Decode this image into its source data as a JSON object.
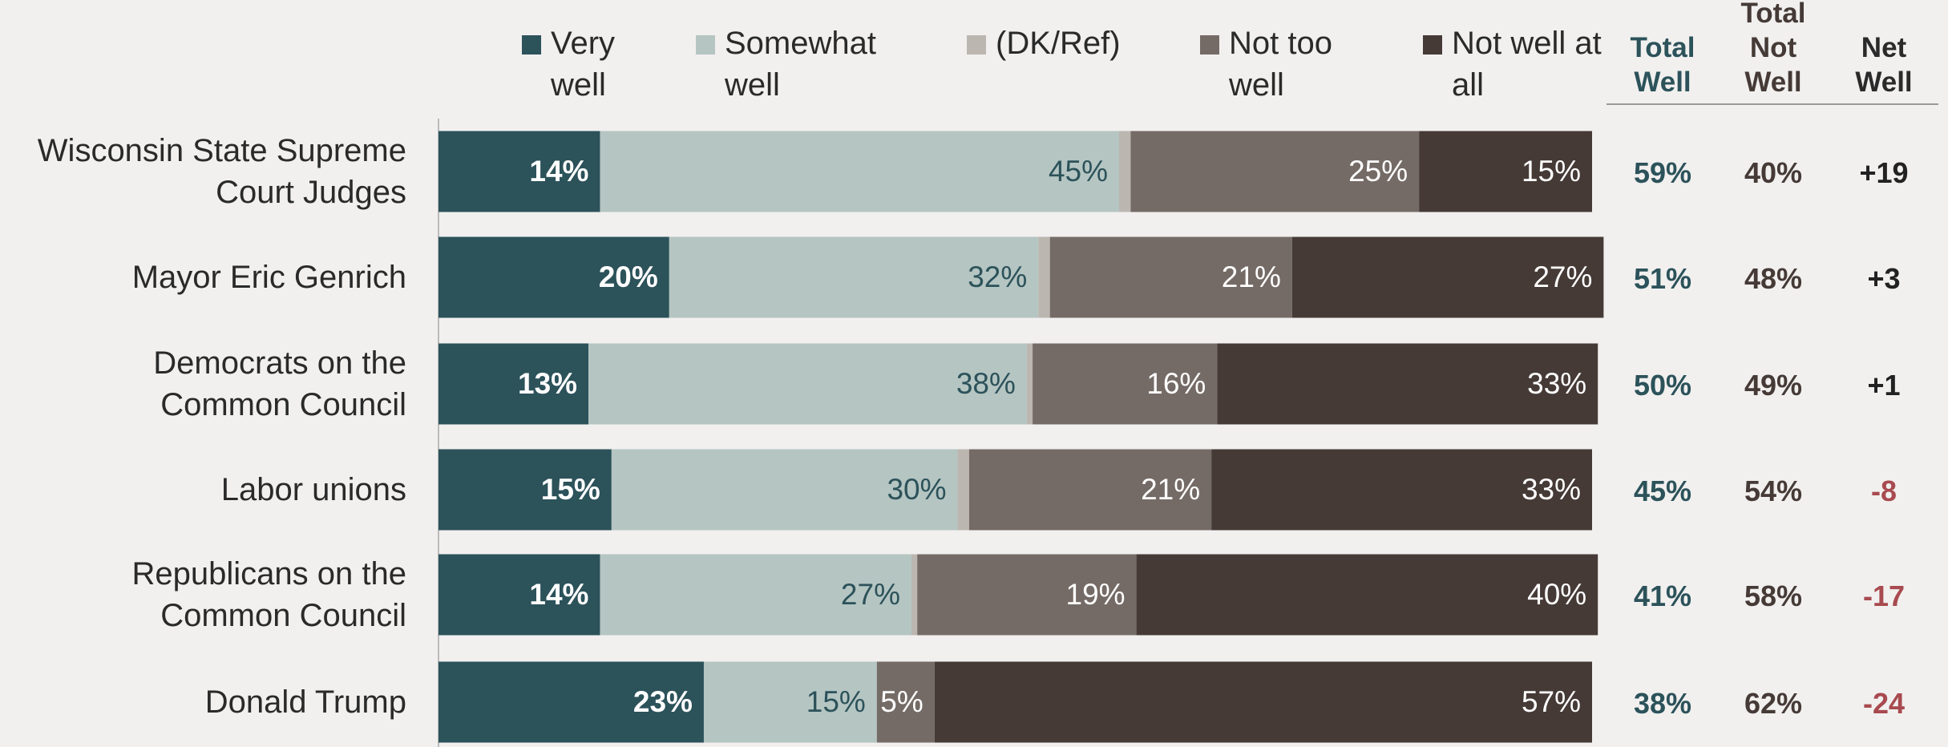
{
  "chart_data": {
    "type": "stacked_bar",
    "orientation": "horizontal",
    "categories": [
      "Wisconsin State Supreme Court Judges",
      "Mayor Eric Genrich",
      "Democrats on the Common Council",
      "Labor unions",
      "Republicans on the Common Council",
      "Donald Trump"
    ],
    "xlim": [
      0,
      100
    ],
    "series": [
      {
        "name": "Very well",
        "color": "#2c525a",
        "label_color": "#ffffff",
        "values": [
          14,
          20,
          13,
          15,
          14,
          23
        ],
        "value_labels": [
          "14%",
          "20%",
          "13%",
          "15%",
          "14%",
          "23%"
        ]
      },
      {
        "name": "Somewhat well",
        "color": "#b5c5c2",
        "label_color": "#2c525a",
        "values": [
          45,
          32,
          38,
          30,
          27,
          15
        ],
        "value_labels": [
          "45%",
          "32%",
          "38%",
          "30%",
          "27%",
          "15%"
        ]
      },
      {
        "name": "(DK/Ref)",
        "color": "#bcb6b0",
        "values": [
          1,
          1,
          0.5,
          1,
          0.5,
          0
        ]
      },
      {
        "name": "Not too well",
        "color": "#756b66",
        "label_color": "#ffffff",
        "values": [
          25,
          21,
          16,
          21,
          19,
          5
        ],
        "value_labels": [
          "25%",
          "21%",
          "16%",
          "21%",
          "19%",
          "5%"
        ]
      },
      {
        "name": "Not well at all",
        "color": "#453a36",
        "label_color": "#ffffff",
        "values": [
          15,
          27,
          33,
          33,
          40,
          57
        ],
        "value_labels": [
          "15%",
          "27%",
          "33%",
          "33%",
          "40%",
          "57%"
        ]
      }
    ],
    "columns": [
      {
        "header": "Total Well",
        "color": "#2c525a",
        "values": [
          "59%",
          "51%",
          "50%",
          "45%",
          "41%",
          "38%"
        ]
      },
      {
        "header": "Total Not Well",
        "color": "#453a36",
        "values": [
          "40%",
          "48%",
          "49%",
          "54%",
          "58%",
          "62%"
        ]
      },
      {
        "header": "Net Well",
        "values": [
          "+19",
          "+3",
          "+1",
          "-8",
          "-17",
          "-24"
        ],
        "colors": [
          "#222222",
          "#222222",
          "#222222",
          "#a84a4f",
          "#a84a4f",
          "#a84a4f"
        ]
      }
    ]
  }
}
